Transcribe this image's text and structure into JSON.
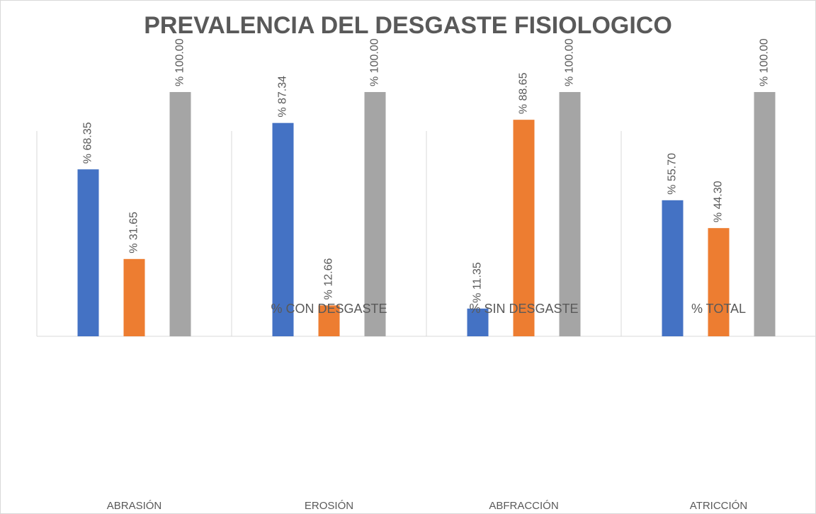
{
  "chart_data": {
    "type": "bar",
    "title": "PREVALENCIA DEL DESGASTE FISIOLOGICO",
    "categories": [
      "ABRASIÓN",
      "EROSIÓN",
      "ABFRACCIÓN",
      "ATRICCIÓN"
    ],
    "series": [
      {
        "name": "% CON DESGASTE",
        "color": "#4472c4",
        "values": [
          68.35,
          87.34,
          11.35,
          55.7
        ],
        "value_labels": [
          "% 68.35",
          "% 87.34",
          "% 11.35",
          "% 55.70"
        ]
      },
      {
        "name": "% SIN DESGASTE",
        "color": "#ed7d31",
        "values": [
          31.65,
          12.66,
          88.65,
          44.3
        ],
        "value_labels": [
          "% 31.65",
          "% 12.66",
          "% 88.65",
          "% 44.30"
        ]
      },
      {
        "name": "% TOTAL",
        "color": "#a5a5a5",
        "values": [
          100.0,
          100.0,
          100.0,
          100.0
        ],
        "value_labels": [
          "% 100.00",
          "% 100.00",
          "% 100.00",
          "% 100.00"
        ]
      }
    ],
    "ylim": [
      0,
      100
    ]
  }
}
